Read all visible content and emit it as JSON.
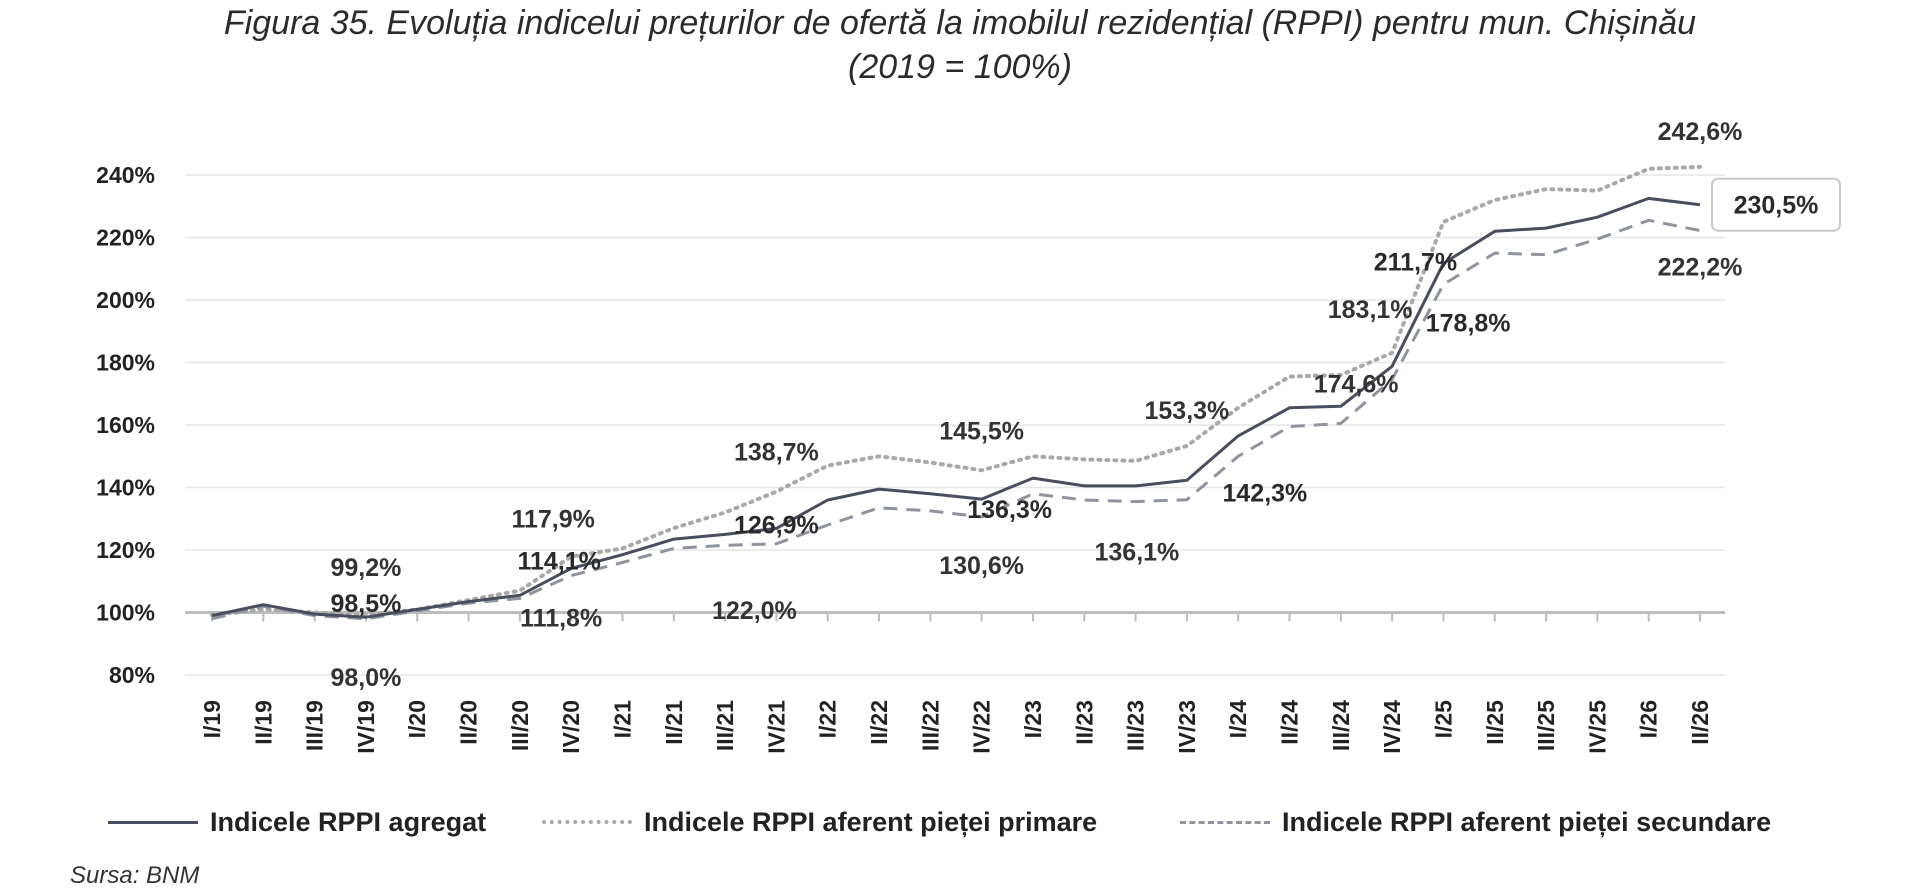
{
  "title_line1": "Figura 35. Evoluția indicelui prețurilor de ofertă la imobilul rezidențial (RPPI) pentru mun. Chișinău",
  "title_line2": "(2019 = 100%)",
  "source": "Sursa: BNM",
  "colors": {
    "aggregate": "#4a4e5c",
    "primary": "#a9a9a9",
    "secondary": "#8f949e",
    "grid": "#e6e6e6",
    "baseline": "#bdbdbd"
  },
  "chart_data": {
    "type": "line",
    "categories": [
      "I/19",
      "II/19",
      "III/19",
      "IV/19",
      "I/20",
      "II/20",
      "III/20",
      "IV/20",
      "I/21",
      "II/21",
      "III/21",
      "IV/21",
      "I/22",
      "II/22",
      "III/22",
      "IV/22",
      "I/23",
      "II/23",
      "III/23",
      "IV/23",
      "I/24",
      "II/24",
      "III/24",
      "IV/24",
      "I/25",
      "II/25",
      "III/25",
      "IV/25",
      "I/26",
      "II/26"
    ],
    "ylim": [
      80,
      240
    ],
    "yticks": [
      "80%",
      "100%",
      "120%",
      "140%",
      "160%",
      "180%",
      "200%",
      "220%",
      "240%"
    ],
    "ytick_values": [
      80,
      100,
      120,
      140,
      160,
      180,
      200,
      220,
      240
    ],
    "series": [
      {
        "name": "Indicele RPPI agregat",
        "style": "solid",
        "values": [
          99.0,
          102.5,
          99.5,
          98.5,
          101.0,
          103.5,
          105.5,
          114.1,
          118.5,
          123.5,
          125.0,
          126.9,
          136.0,
          139.5,
          138.0,
          136.3,
          143.0,
          140.5,
          140.5,
          142.3,
          156.5,
          165.5,
          166.0,
          178.8,
          211.7,
          222.0,
          223.0,
          226.5,
          232.5,
          230.5
        ]
      },
      {
        "name": "Indicele RPPI aferent pieței primare",
        "style": "dotted",
        "values": [
          99.2,
          101.0,
          100.0,
          99.2,
          101.0,
          104.0,
          107.0,
          117.9,
          120.5,
          127.0,
          132.0,
          138.7,
          147.0,
          150.0,
          148.0,
          145.5,
          150.0,
          149.0,
          148.5,
          153.3,
          165.5,
          175.5,
          176.0,
          183.1,
          225.0,
          232.0,
          235.5,
          235.0,
          242.0,
          242.6
        ]
      },
      {
        "name": "Indicele RPPI aferent pieței secundare",
        "style": "dashed",
        "values": [
          98.0,
          102.0,
          99.0,
          98.0,
          100.5,
          103.0,
          104.5,
          111.8,
          116.0,
          120.5,
          121.5,
          122.0,
          128.0,
          133.5,
          132.5,
          130.6,
          138.0,
          136.0,
          135.5,
          136.1,
          150.0,
          159.5,
          160.5,
          174.6,
          205.0,
          215.0,
          214.5,
          219.5,
          225.5,
          222.2
        ]
      }
    ],
    "data_labels": [
      {
        "text": "99,2%",
        "series": 1,
        "index": 3
      },
      {
        "text": "98,5%",
        "series": 0,
        "index": 3
      },
      {
        "text": "98,0%",
        "series": 2,
        "index": 3
      },
      {
        "text": "117,9%",
        "series": 1,
        "index": 7
      },
      {
        "text": "114,1%",
        "series": 0,
        "index": 7
      },
      {
        "text": "111,8%",
        "series": 2,
        "index": 7
      },
      {
        "text": "138,7%",
        "series": 1,
        "index": 11
      },
      {
        "text": "126,9%",
        "series": 0,
        "index": 11
      },
      {
        "text": "122,0%",
        "series": 2,
        "index": 11
      },
      {
        "text": "145,5%",
        "series": 1,
        "index": 15
      },
      {
        "text": "136,3%",
        "series": 0,
        "index": 15
      },
      {
        "text": "130,6%",
        "series": 2,
        "index": 15
      },
      {
        "text": "153,3%",
        "series": 1,
        "index": 19
      },
      {
        "text": "142,3%",
        "series": 0,
        "index": 19
      },
      {
        "text": "136,1%",
        "series": 2,
        "index": 19
      },
      {
        "text": "183,1%",
        "series": 1,
        "index": 23
      },
      {
        "text": "178,8%",
        "series": 0,
        "index": 23
      },
      {
        "text": "174,6%",
        "series": 2,
        "index": 23
      },
      {
        "text": "211,7%",
        "series": 0,
        "index": 24
      },
      {
        "text": "242,6%",
        "series": 1,
        "index": 29
      },
      {
        "text": "230,5%",
        "series": 0,
        "index": 29
      },
      {
        "text": "222,2%",
        "series": 2,
        "index": 29
      }
    ],
    "grid": true,
    "legend_position": "bottom"
  }
}
